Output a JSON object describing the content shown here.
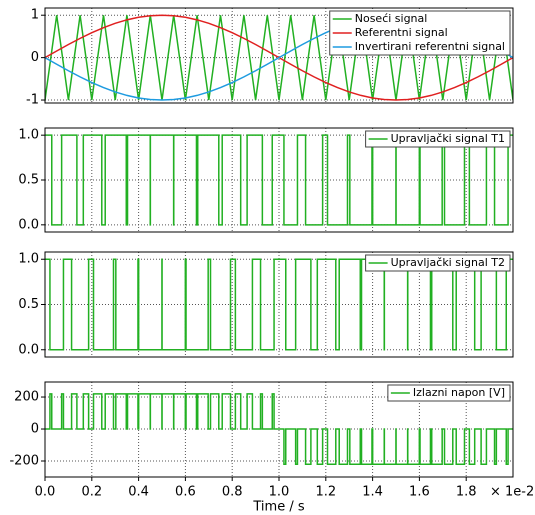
{
  "chart_data": [
    {
      "type": "line",
      "xlim": [
        0,
        2
      ],
      "ylim": [
        -1.07,
        1.17
      ],
      "yticks": [
        -1,
        0,
        1
      ],
      "grid": true,
      "legend": "upper right",
      "x": [
        0,
        0.05,
        0.1,
        0.15,
        0.2,
        0.25,
        0.3,
        0.35,
        0.4,
        0.45,
        0.5,
        0.55,
        0.6,
        0.65,
        0.7,
        0.75,
        0.8,
        0.85,
        0.9,
        0.95,
        1,
        1.05,
        1.1,
        1.15,
        1.2,
        1.25,
        1.3,
        1.35,
        1.4,
        1.45,
        1.5,
        1.55,
        1.6,
        1.65,
        1.7,
        1.75,
        1.8,
        1.85,
        1.9,
        1.95,
        2
      ],
      "series": [
        {
          "name": "Noseći signal",
          "color": "#22b022",
          "values": [
            -1,
            1,
            -1,
            1,
            -1,
            1,
            -1,
            1,
            -1,
            1,
            -1,
            1,
            -1,
            1,
            -1,
            1,
            -1,
            1,
            -1,
            1,
            -1,
            1,
            -1,
            1,
            -1,
            1,
            -1,
            1,
            -1,
            1,
            -1,
            1,
            -1,
            1,
            -1,
            1,
            -1,
            1,
            -1,
            1,
            -1
          ]
        },
        {
          "name": "Referentni signal",
          "color": "#e02020",
          "values": [
            0,
            0.156,
            0.309,
            0.454,
            0.588,
            0.707,
            0.809,
            0.891,
            0.951,
            0.988,
            1,
            0.988,
            0.951,
            0.891,
            0.809,
            0.707,
            0.588,
            0.454,
            0.309,
            0.156,
            0,
            -0.156,
            -0.309,
            -0.454,
            -0.588,
            -0.707,
            -0.809,
            -0.891,
            -0.951,
            -0.988,
            -1,
            -0.988,
            -0.951,
            -0.891,
            -0.809,
            -0.707,
            -0.588,
            -0.454,
            -0.309,
            -0.156,
            0
          ]
        },
        {
          "name": "Invertirani referentni signal",
          "color": "#1e9be0",
          "values": [
            0,
            -0.156,
            -0.309,
            -0.454,
            -0.588,
            -0.707,
            -0.809,
            -0.891,
            -0.951,
            -0.988,
            -1,
            -0.988,
            -0.951,
            -0.891,
            -0.809,
            -0.707,
            -0.588,
            -0.454,
            -0.309,
            -0.156,
            0,
            0.156,
            0.309,
            0.454,
            0.588,
            0.707,
            0.809,
            0.891,
            0.951,
            0.988,
            1,
            0.988,
            0.951,
            0.891,
            0.809,
            0.707,
            0.588,
            0.454,
            0.309,
            0.156,
            0
          ]
        }
      ]
    },
    {
      "type": "line",
      "step": true,
      "xlim": [
        0,
        2
      ],
      "ylim": [
        -0.08,
        1.08
      ],
      "grid": true,
      "legend": "upper right",
      "yticks": [
        {
          "value": 0,
          "label": "0.0"
        },
        {
          "value": 0.5,
          "label": "0.5"
        },
        {
          "value": 1,
          "label": "1.0"
        }
      ],
      "series": [
        {
          "name": "Upravljački signal T1",
          "color": "#22b022",
          "x": [
            0,
            0.0289,
            0.0711,
            0.1363,
            0.1637,
            0.2427,
            0.2573,
            0.3473,
            0.3527,
            0.4497,
            0.4503,
            0.5497,
            0.5503,
            0.6473,
            0.6527,
            0.7427,
            0.7573,
            0.8363,
            0.8637,
            0.9289,
            0.9711,
            1.0211,
            1.0789,
            1.1136,
            1.1864,
            1.2073,
            1.2927,
            1.3027,
            1.3973,
            1.4003,
            1.4997,
            1.5003,
            1.5997,
            1.6027,
            1.6973,
            1.7073,
            1.7927,
            1.8136,
            1.8864,
            1.9211,
            1.9789
          ],
          "values": [
            1,
            0,
            1,
            0,
            1,
            0,
            1,
            0,
            1,
            0,
            1,
            0,
            1,
            0,
            1,
            0,
            1,
            0,
            1,
            0,
            1,
            0,
            1,
            0,
            1,
            0,
            1,
            0,
            1,
            0,
            1,
            0,
            1,
            0,
            1,
            0,
            1,
            0,
            1,
            0,
            1
          ]
        }
      ]
    },
    {
      "type": "line",
      "step": true,
      "xlim": [
        0,
        2
      ],
      "ylim": [
        -0.08,
        1.08
      ],
      "grid": true,
      "legend": "upper right",
      "yticks": [
        {
          "value": 0,
          "label": "0.0"
        },
        {
          "value": 0.5,
          "label": "0.5"
        },
        {
          "value": 1,
          "label": "1.0"
        }
      ],
      "series": [
        {
          "name": "Upravljački signal T2",
          "color": "#22b022",
          "x": [
            0,
            0.0211,
            0.0789,
            0.1136,
            0.1864,
            0.2073,
            0.2927,
            0.3027,
            0.3973,
            0.4003,
            0.4997,
            0.5003,
            0.5997,
            0.6027,
            0.6973,
            0.7073,
            0.7927,
            0.8136,
            0.8864,
            0.9211,
            0.9789,
            1.0289,
            1.0711,
            1.1363,
            1.1637,
            1.2427,
            1.2573,
            1.3473,
            1.3527,
            1.4497,
            1.4503,
            1.5497,
            1.5503,
            1.6473,
            1.6527,
            1.7427,
            1.7573,
            1.8363,
            1.8637,
            1.9289,
            1.9711
          ],
          "values": [
            1,
            0,
            1,
            0,
            1,
            0,
            1,
            0,
            1,
            0,
            1,
            0,
            1,
            0,
            1,
            0,
            1,
            0,
            1,
            0,
            1,
            0,
            1,
            0,
            1,
            0,
            1,
            0,
            1,
            0,
            1,
            0,
            1,
            0,
            1,
            0,
            1,
            0,
            1,
            0,
            1
          ]
        }
      ]
    },
    {
      "type": "line",
      "step": true,
      "xlim": [
        0,
        2
      ],
      "ylim": [
        -300,
        294
      ],
      "yticks": [
        -200,
        0,
        200
      ],
      "grid": true,
      "legend": "upper right",
      "xticks": [
        {
          "value": 0,
          "label": "0.0"
        },
        {
          "value": 0.2,
          "label": "0.2"
        },
        {
          "value": 0.4,
          "label": "0.4"
        },
        {
          "value": 0.6,
          "label": "0.6"
        },
        {
          "value": 0.8,
          "label": "0.8"
        },
        {
          "value": 1,
          "label": "1.0"
        },
        {
          "value": 1.2,
          "label": "1.2"
        },
        {
          "value": 1.4,
          "label": "1.4"
        },
        {
          "value": 1.6,
          "label": "1.6"
        },
        {
          "value": 1.8,
          "label": "1.8"
        }
      ],
      "xlabel": "Time / s",
      "x_offset_label": "× 1e-2",
      "series": [
        {
          "name": "Izlazni napon [V]",
          "color": "#22b022",
          "x": [
            0,
            0.0211,
            0.0289,
            0.0711,
            0.0789,
            0.1136,
            0.1363,
            0.1637,
            0.1864,
            0.2073,
            0.2427,
            0.2573,
            0.2927,
            0.3027,
            0.3473,
            0.3527,
            0.3973,
            0.4003,
            0.4497,
            0.4503,
            0.4997,
            0.5003,
            0.5497,
            0.5503,
            0.5997,
            0.6027,
            0.6473,
            0.6527,
            0.6973,
            0.7073,
            0.7427,
            0.7573,
            0.7927,
            0.8136,
            0.8363,
            0.8637,
            0.8864,
            0.9211,
            0.9289,
            0.9711,
            0.9789,
            1.0211,
            1.0289,
            1.0711,
            1.0789,
            1.1136,
            1.1363,
            1.1637,
            1.1864,
            1.2073,
            1.2427,
            1.2573,
            1.2927,
            1.3027,
            1.3473,
            1.3527,
            1.3973,
            1.4003,
            1.4497,
            1.4503,
            1.4997,
            1.5003,
            1.5497,
            1.5503,
            1.5997,
            1.6027,
            1.6473,
            1.6527,
            1.6973,
            1.7073,
            1.7427,
            1.7573,
            1.7927,
            1.8136,
            1.8363,
            1.8637,
            1.8864,
            1.9211,
            1.9289,
            1.9711,
            1.9789
          ],
          "values": [
            0,
            220,
            0,
            220,
            0,
            220,
            0,
            220,
            0,
            220,
            0,
            220,
            0,
            220,
            0,
            220,
            0,
            220,
            0,
            220,
            0,
            220,
            0,
            220,
            0,
            220,
            0,
            220,
            0,
            220,
            0,
            220,
            0,
            220,
            0,
            220,
            0,
            220,
            0,
            220,
            0,
            -220,
            0,
            -220,
            0,
            -220,
            0,
            -220,
            0,
            -220,
            0,
            -220,
            0,
            -220,
            0,
            -220,
            0,
            -220,
            0,
            -220,
            0,
            -220,
            0,
            -220,
            0,
            -220,
            0,
            -220,
            0,
            -220,
            0,
            -220,
            0,
            -220,
            0,
            -220,
            0,
            -220,
            0,
            -220,
            0
          ]
        }
      ]
    }
  ]
}
